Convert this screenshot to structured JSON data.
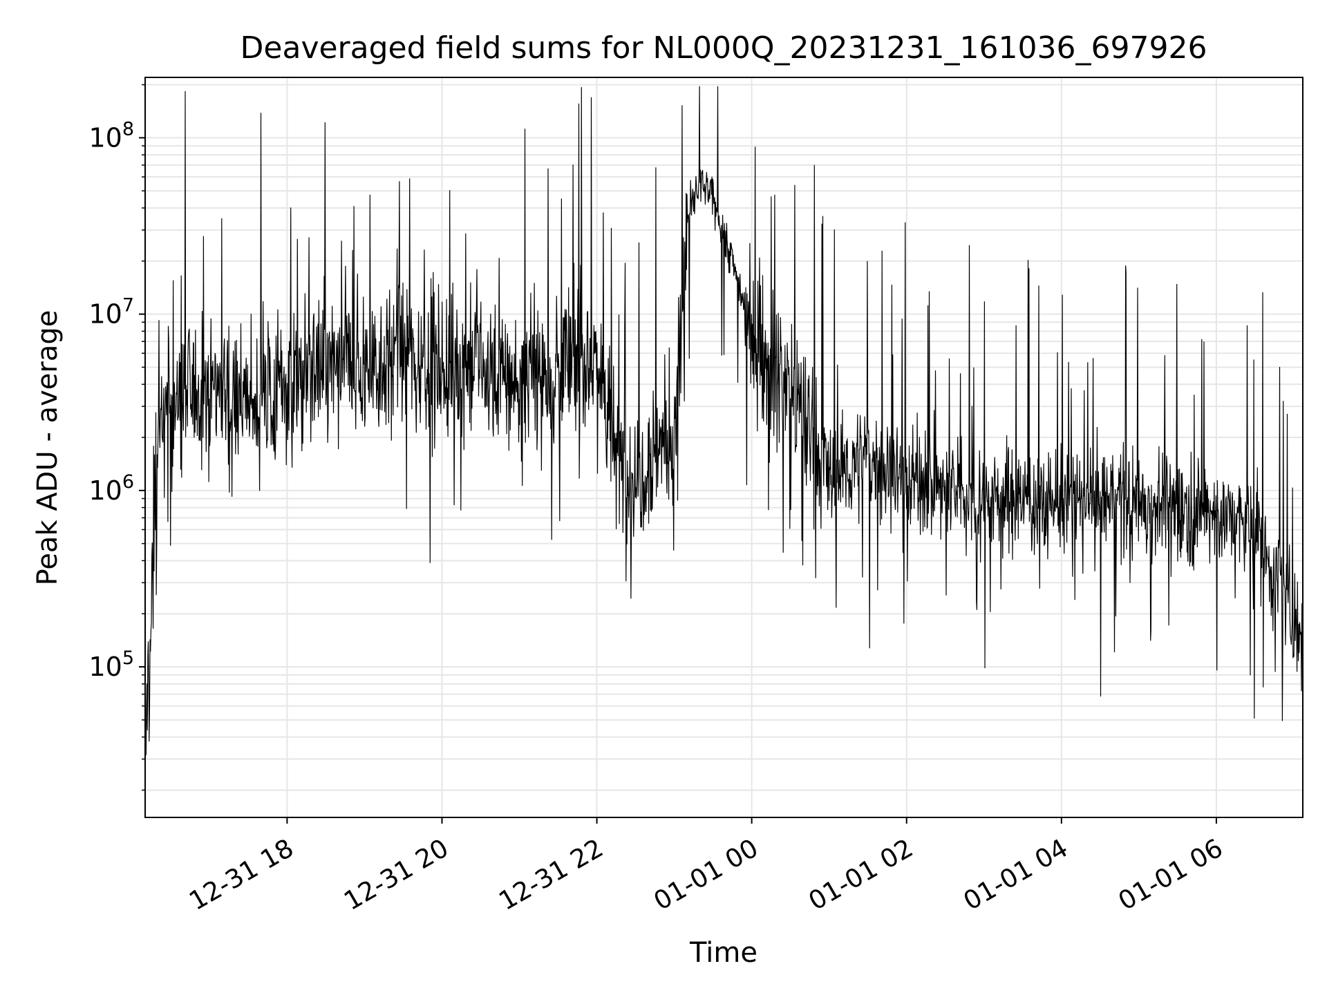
{
  "chart_data": {
    "type": "line",
    "title": "Deaveraged field sums for NL000Q_20231231_161036_697926",
    "xlabel": "Time",
    "ylabel": "Peak ADU - average",
    "yscale": "log",
    "ylim": [
      14000,
      220000000
    ],
    "xlim": [
      "2023-12-31 16:10",
      "2024-01-01 07:07"
    ],
    "grid": {
      "major": true,
      "minor_y": true,
      "color": "#e6e6e6"
    },
    "line_color": "#000000",
    "x_ticks": [
      {
        "value": "2023-12-31 18:00",
        "label": "12-31 18"
      },
      {
        "value": "2023-12-31 20:00",
        "label": "12-31 20"
      },
      {
        "value": "2023-12-31 22:00",
        "label": "12-31 22"
      },
      {
        "value": "2024-01-01 00:00",
        "label": "01-01 00"
      },
      {
        "value": "2024-01-01 02:00",
        "label": "01-01 02"
      },
      {
        "value": "2024-01-01 04:00",
        "label": "01-01 04"
      },
      {
        "value": "2024-01-01 06:00",
        "label": "01-01 06"
      }
    ],
    "y_ticks": [
      {
        "value": 100000,
        "base": "10",
        "exp": "5"
      },
      {
        "value": 1000000,
        "base": "10",
        "exp": "6"
      },
      {
        "value": 10000000,
        "base": "10",
        "exp": "7"
      },
      {
        "value": 100000000,
        "base": "10",
        "exp": "8"
      }
    ],
    "series": [
      {
        "values": [
          [
            "2023-12-31 16:10",
            25000
          ],
          [
            "2023-12-31 16:12",
            80000
          ],
          [
            "2023-12-31 16:15",
            200000
          ],
          [
            "2023-12-31 16:17",
            800000
          ],
          [
            "2023-12-31 16:20",
            2000000
          ],
          [
            "2023-12-31 16:30",
            3000000
          ],
          [
            "2023-12-31 16:45",
            3500000
          ],
          [
            "2023-12-31 17:00",
            4000000
          ],
          [
            "2023-12-31 17:15",
            4000000
          ],
          [
            "2023-12-31 17:30",
            3000000
          ],
          [
            "2023-12-31 17:45",
            3500000
          ],
          [
            "2023-12-31 18:00",
            4000000
          ],
          [
            "2023-12-31 18:30",
            5000000
          ],
          [
            "2023-12-31 19:00",
            5000000
          ],
          [
            "2023-12-31 19:30",
            6000000
          ],
          [
            "2023-12-31 20:00",
            5000000
          ],
          [
            "2023-12-31 20:30",
            5000000
          ],
          [
            "2023-12-31 21:00",
            4000000
          ],
          [
            "2023-12-31 21:30",
            5000000
          ],
          [
            "2023-12-31 22:00",
            6000000
          ],
          [
            "2023-12-31 22:15",
            1500000
          ],
          [
            "2023-12-31 22:30",
            1200000
          ],
          [
            "2023-12-31 22:50",
            2000000
          ],
          [
            "2023-12-31 23:00",
            1500000
          ],
          [
            "2023-12-31 23:10",
            35000000
          ],
          [
            "2023-12-31 23:20",
            55000000
          ],
          [
            "2023-12-31 23:30",
            45000000
          ],
          [
            "2023-12-31 23:45",
            20000000
          ],
          [
            "2024-01-01 00:00",
            8000000
          ],
          [
            "2024-01-01 00:15",
            5000000
          ],
          [
            "2024-01-01 00:30",
            4000000
          ],
          [
            "2024-01-01 00:45",
            2000000
          ],
          [
            "2024-01-01 01:00",
            1200000
          ],
          [
            "2024-01-01 01:30",
            1500000
          ],
          [
            "2024-01-01 02:00",
            1200000
          ],
          [
            "2024-01-01 02:30",
            1000000
          ],
          [
            "2024-01-01 03:00",
            900000
          ],
          [
            "2024-01-01 03:30",
            900000
          ],
          [
            "2024-01-01 04:00",
            850000
          ],
          [
            "2024-01-01 04:30",
            900000
          ],
          [
            "2024-01-01 05:00",
            850000
          ],
          [
            "2024-01-01 05:30",
            800000
          ],
          [
            "2024-01-01 06:00",
            750000
          ],
          [
            "2024-01-01 06:30",
            600000
          ],
          [
            "2024-01-01 07:07",
            150000
          ]
        ]
      }
    ]
  }
}
